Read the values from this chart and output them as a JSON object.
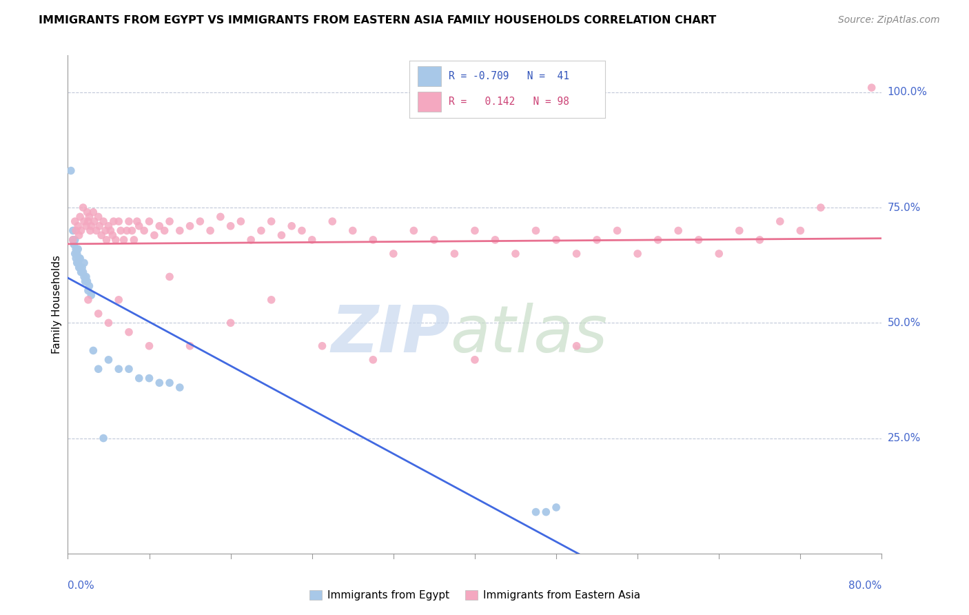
{
  "title": "IMMIGRANTS FROM EGYPT VS IMMIGRANTS FROM EASTERN ASIA FAMILY HOUSEHOLDS CORRELATION CHART",
  "source": "Source: ZipAtlas.com",
  "ylabel": "Family Households",
  "color_egypt": "#a8c8e8",
  "color_eastern_asia": "#f4a8c0",
  "trendline_egypt": "#4169e1",
  "trendline_eastern_asia": "#e87090",
  "xlim": [
    0.0,
    0.8
  ],
  "ylim": [
    0.0,
    1.08
  ],
  "egypt_x": [
    0.003,
    0.005,
    0.005,
    0.006,
    0.007,
    0.007,
    0.008,
    0.008,
    0.009,
    0.009,
    0.01,
    0.01,
    0.011,
    0.011,
    0.012,
    0.012,
    0.013,
    0.014,
    0.015,
    0.016,
    0.016,
    0.017,
    0.018,
    0.019,
    0.02,
    0.021,
    0.023,
    0.025,
    0.03,
    0.035,
    0.04,
    0.05,
    0.06,
    0.07,
    0.08,
    0.09,
    0.1,
    0.11,
    0.46,
    0.47,
    0.48
  ],
  "egypt_y": [
    0.83,
    0.68,
    0.7,
    0.67,
    0.65,
    0.68,
    0.66,
    0.64,
    0.63,
    0.65,
    0.63,
    0.66,
    0.62,
    0.64,
    0.62,
    0.64,
    0.61,
    0.62,
    0.61,
    0.6,
    0.63,
    0.59,
    0.6,
    0.59,
    0.57,
    0.58,
    0.56,
    0.44,
    0.4,
    0.25,
    0.42,
    0.4,
    0.4,
    0.38,
    0.38,
    0.37,
    0.37,
    0.36,
    0.09,
    0.09,
    0.1
  ],
  "eastern_asia_x": [
    0.005,
    0.007,
    0.008,
    0.01,
    0.011,
    0.012,
    0.013,
    0.015,
    0.016,
    0.018,
    0.019,
    0.02,
    0.021,
    0.022,
    0.023,
    0.025,
    0.026,
    0.028,
    0.03,
    0.031,
    0.033,
    0.035,
    0.037,
    0.038,
    0.04,
    0.042,
    0.044,
    0.045,
    0.047,
    0.05,
    0.052,
    0.055,
    0.058,
    0.06,
    0.063,
    0.065,
    0.068,
    0.07,
    0.075,
    0.08,
    0.085,
    0.09,
    0.095,
    0.1,
    0.11,
    0.12,
    0.13,
    0.14,
    0.15,
    0.16,
    0.17,
    0.18,
    0.19,
    0.2,
    0.21,
    0.22,
    0.23,
    0.24,
    0.26,
    0.28,
    0.3,
    0.32,
    0.34,
    0.36,
    0.38,
    0.4,
    0.42,
    0.44,
    0.46,
    0.48,
    0.5,
    0.52,
    0.54,
    0.56,
    0.58,
    0.6,
    0.62,
    0.64,
    0.66,
    0.68,
    0.7,
    0.72,
    0.74,
    0.02,
    0.03,
    0.04,
    0.05,
    0.06,
    0.08,
    0.1,
    0.12,
    0.16,
    0.2,
    0.25,
    0.3,
    0.4,
    0.5,
    0.79
  ],
  "eastern_asia_y": [
    0.68,
    0.72,
    0.7,
    0.71,
    0.69,
    0.73,
    0.7,
    0.75,
    0.72,
    0.71,
    0.74,
    0.72,
    0.73,
    0.7,
    0.71,
    0.74,
    0.72,
    0.7,
    0.73,
    0.71,
    0.69,
    0.72,
    0.7,
    0.68,
    0.71,
    0.7,
    0.69,
    0.72,
    0.68,
    0.72,
    0.7,
    0.68,
    0.7,
    0.72,
    0.7,
    0.68,
    0.72,
    0.71,
    0.7,
    0.72,
    0.69,
    0.71,
    0.7,
    0.72,
    0.7,
    0.71,
    0.72,
    0.7,
    0.73,
    0.71,
    0.72,
    0.68,
    0.7,
    0.72,
    0.69,
    0.71,
    0.7,
    0.68,
    0.72,
    0.7,
    0.68,
    0.65,
    0.7,
    0.68,
    0.65,
    0.7,
    0.68,
    0.65,
    0.7,
    0.68,
    0.65,
    0.68,
    0.7,
    0.65,
    0.68,
    0.7,
    0.68,
    0.65,
    0.7,
    0.68,
    0.72,
    0.7,
    0.75,
    0.55,
    0.52,
    0.5,
    0.55,
    0.48,
    0.45,
    0.6,
    0.45,
    0.5,
    0.55,
    0.45,
    0.42,
    0.42,
    0.45,
    1.01
  ]
}
